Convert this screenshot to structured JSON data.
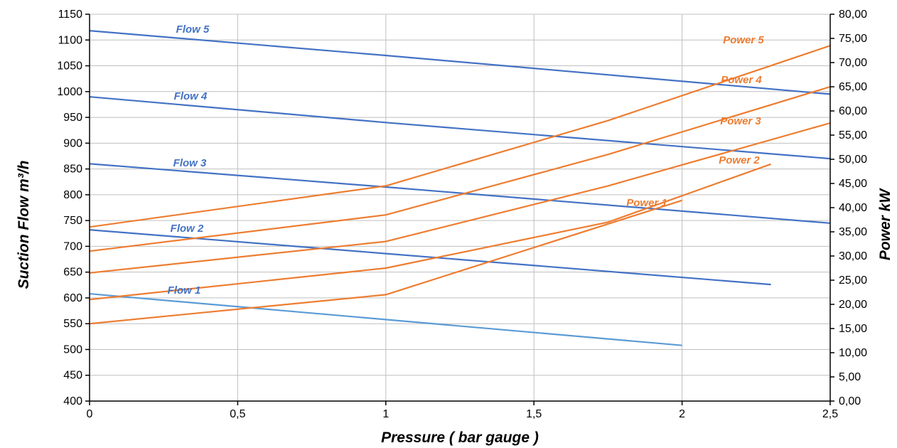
{
  "chart_data": {
    "type": "line",
    "title": "",
    "xlabel": "Pressure ( bar gauge )",
    "ylabel": "Suction Flow m³/h",
    "y2label": "Power kW",
    "xlim": [
      0,
      2.5
    ],
    "ylim": [
      400,
      1150
    ],
    "y2lim": [
      0,
      80
    ],
    "grid": true,
    "legend": "none",
    "x_ticks": [
      "0",
      "0,5",
      "1",
      "1,5",
      "2",
      "2,5"
    ],
    "x_tick_values": [
      0,
      0.5,
      1,
      1.5,
      2,
      2.5
    ],
    "y_ticks": [
      "400",
      "450",
      "500",
      "550",
      "600",
      "650",
      "700",
      "750",
      "800",
      "850",
      "900",
      "950",
      "1000",
      "1050",
      "1100",
      "1150"
    ],
    "y_tick_values": [
      400,
      450,
      500,
      550,
      600,
      650,
      700,
      750,
      800,
      850,
      900,
      950,
      1000,
      1050,
      1100,
      1150
    ],
    "y2_ticks": [
      "0,00",
      "5,00",
      "10,00",
      "15,00",
      "20,00",
      "25,00",
      "30,00",
      "35,00",
      "40,00",
      "45,00",
      "50,00",
      "55,00",
      "60,00",
      "65,00",
      "70,00",
      "75,00",
      "80,00"
    ],
    "y2_tick_values": [
      0,
      5,
      10,
      15,
      20,
      25,
      30,
      35,
      40,
      45,
      50,
      55,
      60,
      65,
      70,
      75,
      80
    ],
    "flow_color": "#4472c4",
    "flow1_color": "#5b9bd5",
    "power_color": "#ed7d31",
    "series": [
      {
        "name": "Flow 1",
        "axis": "left",
        "x": [
          0,
          1,
          2
        ],
        "values": [
          608,
          558,
          508
        ]
      },
      {
        "name": "Flow 2",
        "axis": "left",
        "x": [
          0,
          1,
          2.3
        ],
        "values": [
          732,
          686,
          626
        ]
      },
      {
        "name": "Flow 3",
        "axis": "left",
        "x": [
          0,
          1,
          2.5
        ],
        "values": [
          860,
          815,
          745
        ]
      },
      {
        "name": "Flow 4",
        "axis": "left",
        "x": [
          0,
          1,
          2.5
        ],
        "values": [
          990,
          940,
          870
        ]
      },
      {
        "name": "Flow 5",
        "axis": "left",
        "x": [
          0,
          1,
          2.5
        ],
        "values": [
          1118,
          1070,
          995
        ]
      },
      {
        "name": "Power 1",
        "axis": "right",
        "x": [
          0,
          1,
          2
        ],
        "values": [
          16.0,
          22.0,
          41.5
        ]
      },
      {
        "name": "Power 2",
        "axis": "right",
        "x": [
          0,
          1,
          1.75,
          2.3
        ],
        "values": [
          21.0,
          27.5,
          37.0,
          49.0
        ]
      },
      {
        "name": "Power 3",
        "axis": "right",
        "x": [
          0,
          1,
          1.75,
          2.5
        ],
        "values": [
          26.5,
          33.0,
          44.5,
          57.5
        ]
      },
      {
        "name": "Power 4",
        "axis": "right",
        "x": [
          0,
          1,
          1.75,
          2.5
        ],
        "values": [
          31.0,
          38.5,
          51.0,
          65.0
        ]
      },
      {
        "name": "Power 5",
        "axis": "right",
        "x": [
          0,
          1,
          1.75,
          2.5
        ],
        "values": [
          36.0,
          44.5,
          58.0,
          73.5
        ]
      }
    ],
    "annotations": [
      {
        "series": "Flow 1",
        "text": "Flow 1"
      },
      {
        "series": "Flow 2",
        "text": "Flow 2"
      },
      {
        "series": "Flow 3",
        "text": "Flow 3"
      },
      {
        "series": "Flow 4",
        "text": "Flow 4"
      },
      {
        "series": "Flow 5",
        "text": "Flow 5"
      },
      {
        "series": "Power 1",
        "text": "Power 1"
      },
      {
        "series": "Power 2",
        "text": "Power 2"
      },
      {
        "series": "Power 3",
        "text": "Power 3"
      },
      {
        "series": "Power 4",
        "text": "Power 4"
      },
      {
        "series": "Power 5",
        "text": "Power 5"
      }
    ]
  }
}
